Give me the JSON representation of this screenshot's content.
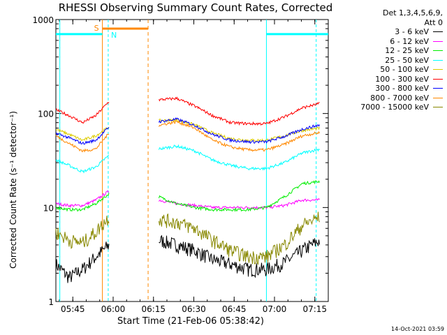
{
  "chart_data": {
    "type": "line",
    "title": "RHESSI Observing Summary Count Rates, Corrected",
    "xlabel": "Start Time (21-Feb-06 05:38:42)",
    "ylabel": "Corrected Count Rate (s⁻¹ detector⁻¹)",
    "x_ticks": [
      "05:45",
      "06:00",
      "06:15",
      "06:30",
      "06:45",
      "07:00",
      "07:15"
    ],
    "y_ticks": [
      "1",
      "10",
      "100",
      "1000"
    ],
    "xlim": [
      "05:38:42",
      "07:20:00"
    ],
    "ylim": [
      1,
      1000
    ],
    "y_scale": "log",
    "legend_header": [
      "Det 1,3,4,5,6,9,",
      "Att 0"
    ],
    "legend_placement": "right",
    "series": [
      {
        "name": "3 - 6 keV",
        "color": "#000000",
        "values": {
          "pre": [
            2.5,
            1.8,
            2.2,
            3.0,
            4.0
          ],
          "main": [
            4.5,
            4.0,
            3.5,
            2.8,
            2.5,
            2.2,
            2.2,
            2.6,
            3.5,
            4.5
          ]
        }
      },
      {
        "name": "6 - 12 keV",
        "color": "#ff00ff",
        "values": {
          "pre": [
            11,
            10.5,
            10.5,
            12,
            15
          ],
          "main": [
            12,
            11,
            10.5,
            10,
            10,
            10,
            10,
            10.5,
            12,
            12
          ]
        }
      },
      {
        "name": "12 - 25 keV",
        "color": "#00ee00",
        "values": {
          "pre": [
            10,
            9.5,
            9.5,
            11,
            14
          ],
          "main": [
            13,
            11,
            10,
            9.5,
            9.5,
            9.5,
            10,
            13,
            18,
            19
          ]
        }
      },
      {
        "name": "25 - 50 keV",
        "color": "#00ffff",
        "values": {
          "pre": [
            32,
            28,
            24,
            27,
            36
          ],
          "main": [
            42,
            45,
            40,
            32,
            28,
            26,
            26,
            30,
            38,
            42
          ]
        }
      },
      {
        "name": "50 - 100 keV",
        "color": "#ddcc00",
        "values": {
          "pre": [
            68,
            60,
            52,
            58,
            72
          ],
          "main": [
            84,
            85,
            76,
            62,
            54,
            52,
            52,
            58,
            66,
            70
          ]
        }
      },
      {
        "name": "100 - 300 keV",
        "color": "#ff0000",
        "values": {
          "pre": [
            110,
            95,
            80,
            95,
            135
          ],
          "main": [
            140,
            145,
            120,
            95,
            80,
            78,
            78,
            92,
            115,
            128
          ]
        }
      },
      {
        "name": "300 - 800 keV",
        "color": "#0000ff",
        "values": {
          "pre": [
            62,
            55,
            48,
            52,
            72
          ],
          "main": [
            82,
            87,
            75,
            60,
            52,
            50,
            50,
            57,
            68,
            76
          ]
        }
      },
      {
        "name": "800 - 7000 keV",
        "color": "#ff8800",
        "values": {
          "pre": [
            58,
            48,
            40,
            42,
            62
          ],
          "main": [
            75,
            82,
            70,
            52,
            44,
            41,
            41,
            47,
            58,
            63
          ]
        }
      },
      {
        "name": "7000 - 15000 keV",
        "color": "#888800",
        "values": {
          "pre": [
            5.5,
            4.5,
            4.2,
            5.5,
            8.0
          ],
          "main": [
            7.5,
            7.0,
            6.0,
            4.5,
            3.5,
            3.0,
            3.0,
            4.0,
            6.5,
            8.0
          ]
        }
      }
    ],
    "flags": [
      {
        "label": "S",
        "color": "#ff8800",
        "value": 800
      },
      {
        "label": "N",
        "color": "#00ffff",
        "value": 700
      }
    ]
  },
  "timestamp": "14-Oct-2021 03:59"
}
